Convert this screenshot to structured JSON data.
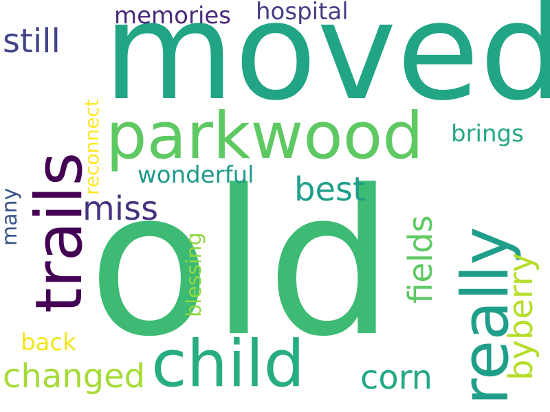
{
  "words": {
    "old": "old",
    "moved": "moved",
    "parkwood": "parkwood",
    "child": "child",
    "trails": "trails",
    "really": "really",
    "changed": "changed",
    "corn": "corn",
    "fields": "fields",
    "byberry": "byberry",
    "best": "best",
    "miss": "miss",
    "still": "still",
    "memories": "memories",
    "hospital": "hospital",
    "wonderful": "wonderful",
    "brings": "brings",
    "reconnect": "reconnect",
    "blessing": "blessing",
    "many": "many",
    "back": "back"
  },
  "colors": {
    "old": "#3dbb74",
    "moved": "#21a585",
    "parkwood": "#5ec962",
    "child": "#27ad81",
    "trails": "#440154",
    "really": "#1f9e89",
    "changed": "#a5db36",
    "corn": "#22a884",
    "fields": "#5ec962",
    "byberry": "#b5de2b",
    "best": "#1f9e89",
    "miss": "#46327e",
    "still": "#414487",
    "memories": "#482878",
    "hospital": "#433e85",
    "wonderful": "#1f9a8a",
    "brings": "#26a784",
    "reconnect": "#fde725",
    "blessing": "#90d743",
    "many": "#3b528b",
    "back": "#f1e51d"
  }
}
